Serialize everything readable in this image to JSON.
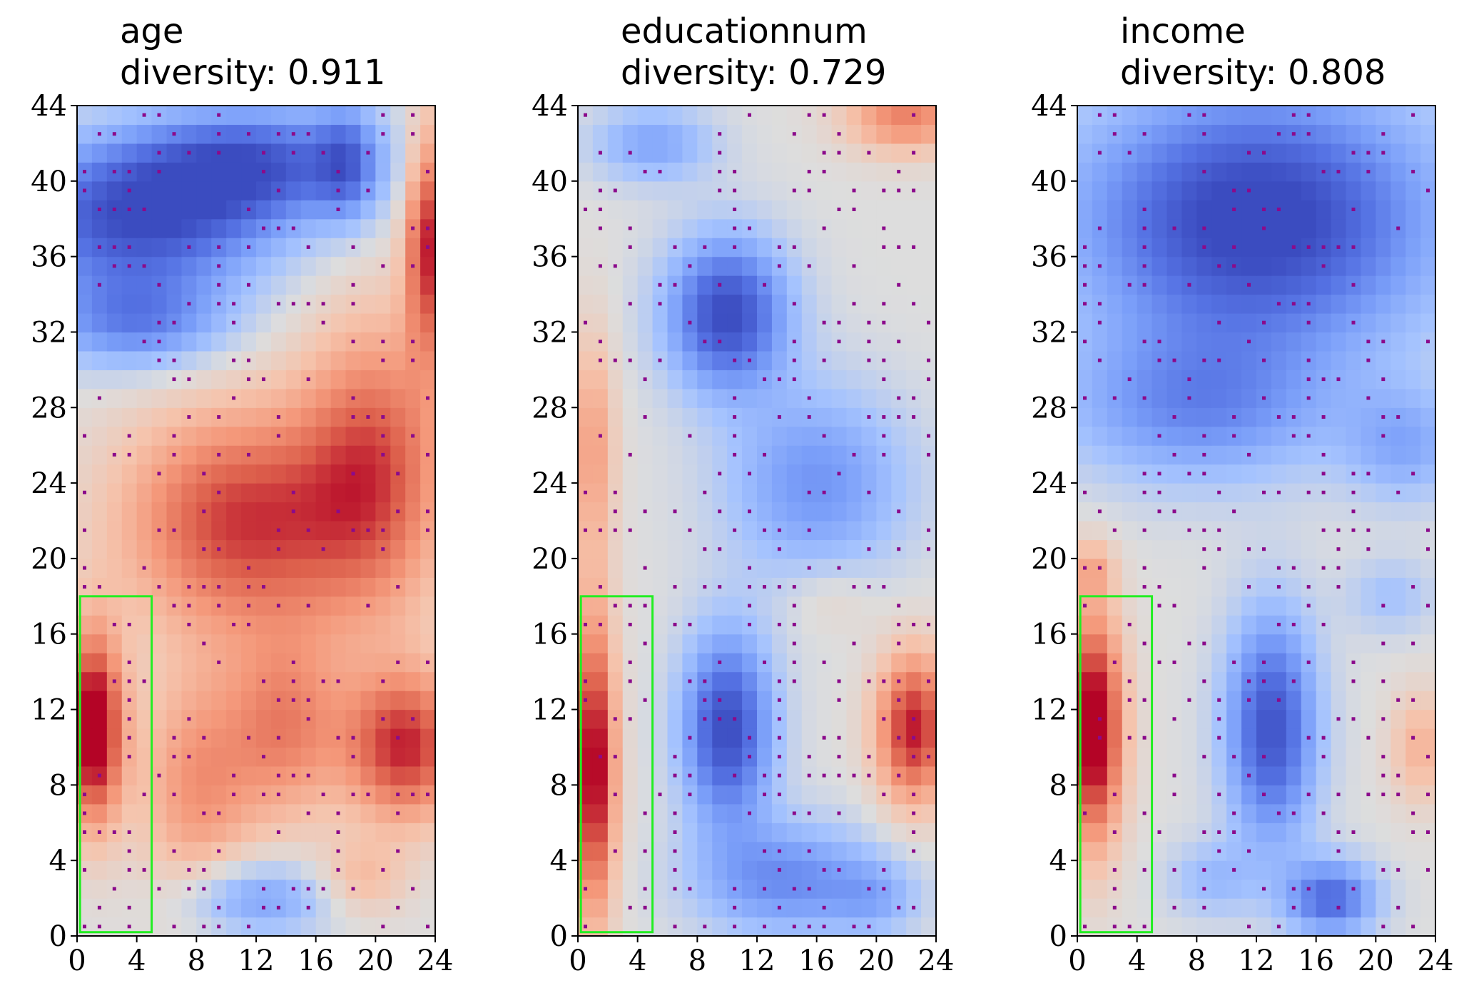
{
  "chart_data": [
    {
      "type": "heatmap",
      "title_line1": "age",
      "title_line2": "diversity:  0.911",
      "xlim": [
        0,
        24
      ],
      "ylim": [
        0,
        44
      ],
      "xticks": [
        "0",
        "4",
        "8",
        "12",
        "16",
        "20",
        "24"
      ],
      "yticks": [
        "0",
        "4",
        "8",
        "12",
        "16",
        "20",
        "24",
        "28",
        "32",
        "36",
        "40",
        "44"
      ],
      "colormap": "coolwarm",
      "value_range": [
        -1,
        1
      ],
      "blobs": [
        {
          "x": 23.5,
          "y": 37,
          "sx": 1.5,
          "sy": 6,
          "a": 0.9
        },
        {
          "x": 4,
          "y": 38,
          "sx": 9,
          "sy": 4,
          "a": -0.95
        },
        {
          "x": 12,
          "y": 41,
          "sx": 8,
          "sy": 3,
          "a": -0.8
        },
        {
          "x": 18,
          "y": 41,
          "sx": 2,
          "sy": 3,
          "a": -0.5
        },
        {
          "x": 4,
          "y": 32.5,
          "sx": 6,
          "sy": 2.5,
          "a": -0.6
        },
        {
          "x": 11,
          "y": 22,
          "sx": 8,
          "sy": 6,
          "a": 0.85
        },
        {
          "x": 20,
          "y": 25,
          "sx": 5,
          "sy": 8,
          "a": 0.7
        },
        {
          "x": 1,
          "y": 11,
          "sx": 2,
          "sy": 5,
          "a": 1.2
        },
        {
          "x": 22,
          "y": 10,
          "sx": 4,
          "sy": 4,
          "a": 0.9
        },
        {
          "x": 8,
          "y": 8,
          "sx": 4,
          "sy": 6,
          "a": 0.5
        },
        {
          "x": 14,
          "y": 11,
          "sx": 4,
          "sy": 5,
          "a": 0.55
        },
        {
          "x": 12,
          "y": 2,
          "sx": 5,
          "sy": 2,
          "a": -0.5
        },
        {
          "x": 19,
          "y": 3,
          "sx": 3,
          "sy": 2,
          "a": 0.3
        }
      ],
      "highlight_box": {
        "x0": 0.2,
        "x1": 5.0,
        "y0": 0.2,
        "y1": 18.0,
        "color": "#22ee22"
      },
      "marker_color": "#8b0a8b",
      "seed": 11
    },
    {
      "type": "heatmap",
      "title_line1": "educationnum",
      "title_line2": "diversity:  0.729",
      "xlim": [
        0,
        24
      ],
      "ylim": [
        0,
        44
      ],
      "xticks": [
        "0",
        "4",
        "8",
        "12",
        "16",
        "20",
        "24"
      ],
      "yticks": [
        "0",
        "4",
        "8",
        "12",
        "16",
        "20",
        "24",
        "28",
        "32",
        "36",
        "40",
        "44"
      ],
      "colormap": "coolwarm",
      "value_range": [
        -1,
        1
      ],
      "blobs": [
        {
          "x": 10,
          "y": 33,
          "sx": 4,
          "sy": 4,
          "a": -1.0
        },
        {
          "x": 10,
          "y": 11,
          "sx": 3,
          "sy": 5,
          "a": -1.0
        },
        {
          "x": 1,
          "y": 9,
          "sx": 1.5,
          "sy": 8,
          "a": 1.1
        },
        {
          "x": 1,
          "y": 26,
          "sx": 1.5,
          "sy": 6,
          "a": 0.45
        },
        {
          "x": 22.5,
          "y": 11,
          "sx": 2.5,
          "sy": 4,
          "a": 0.95
        },
        {
          "x": 22,
          "y": 43.5,
          "sx": 4,
          "sy": 2,
          "a": 0.6
        },
        {
          "x": 16,
          "y": 24,
          "sx": 6,
          "sy": 5,
          "a": -0.55
        },
        {
          "x": 14,
          "y": 3,
          "sx": 6,
          "sy": 3,
          "a": -0.6
        },
        {
          "x": 5,
          "y": 42,
          "sx": 4,
          "sy": 2,
          "a": -0.45
        },
        {
          "x": 17,
          "y": 18,
          "sx": 3,
          "sy": 2,
          "a": 0.15
        },
        {
          "x": 20,
          "y": 2,
          "sx": 3,
          "sy": 2,
          "a": -0.3
        }
      ],
      "highlight_box": {
        "x0": 0.2,
        "x1": 5.0,
        "y0": 0.2,
        "y1": 18.0,
        "color": "#22ee22"
      },
      "marker_color": "#8b0a8b",
      "seed": 23
    },
    {
      "type": "heatmap",
      "title_line1": "income",
      "title_line2": "diversity:  0.808",
      "xlim": [
        0,
        24
      ],
      "ylim": [
        0,
        44
      ],
      "xticks": [
        "0",
        "4",
        "8",
        "12",
        "16",
        "20",
        "24"
      ],
      "yticks": [
        "0",
        "4",
        "8",
        "12",
        "16",
        "20",
        "24",
        "28",
        "32",
        "36",
        "40",
        "44"
      ],
      "colormap": "coolwarm",
      "value_range": [
        -1,
        1
      ],
      "blobs": [
        {
          "x": 12,
          "y": 38,
          "sx": 12,
          "sy": 7,
          "a": -1.1
        },
        {
          "x": 8,
          "y": 28,
          "sx": 9,
          "sy": 4,
          "a": -0.55
        },
        {
          "x": 22,
          "y": 26,
          "sx": 4,
          "sy": 3,
          "a": -0.4
        },
        {
          "x": 1,
          "y": 11,
          "sx": 2,
          "sy": 6,
          "a": 1.2
        },
        {
          "x": 13,
          "y": 11,
          "sx": 3,
          "sy": 6,
          "a": -0.95
        },
        {
          "x": 17,
          "y": 2,
          "sx": 3,
          "sy": 2,
          "a": -0.8
        },
        {
          "x": 23,
          "y": 10,
          "sx": 2,
          "sy": 3,
          "a": 0.35
        },
        {
          "x": 1,
          "y": 19.5,
          "sx": 1.5,
          "sy": 1.5,
          "a": 0.3
        },
        {
          "x": 9,
          "y": 3,
          "sx": 3,
          "sy": 2,
          "a": -0.3
        },
        {
          "x": 21,
          "y": 18,
          "sx": 3,
          "sy": 2,
          "a": -0.25
        }
      ],
      "highlight_box": {
        "x0": 0.2,
        "x1": 5.0,
        "y0": 0.2,
        "y1": 18.0,
        "color": "#22ee22"
      },
      "marker_color": "#8b0a8b",
      "seed": 37
    }
  ]
}
